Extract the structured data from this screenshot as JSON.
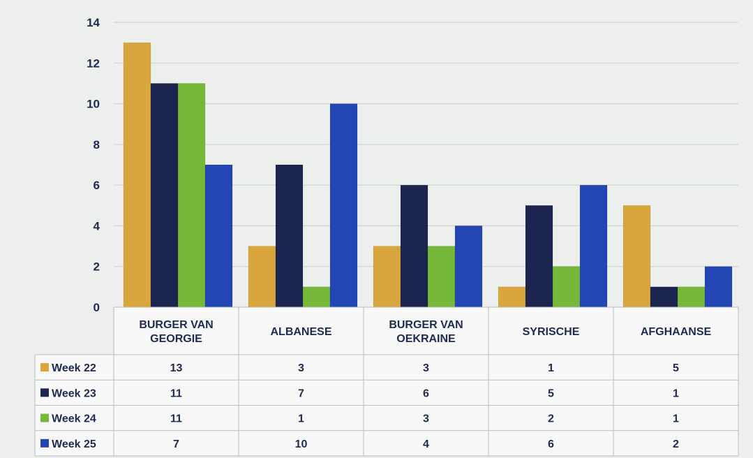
{
  "chart_data": {
    "type": "bar",
    "categories": [
      [
        "BURGER VAN",
        "GEORGIE"
      ],
      [
        "ALBANESE"
      ],
      [
        "BURGER VAN",
        "OEKRAINE"
      ],
      [
        "SYRISCHE"
      ],
      [
        "AFGHAANSE"
      ]
    ],
    "series": [
      {
        "name": "Week 22",
        "color": "#d8a63c",
        "values": [
          13,
          3,
          3,
          1,
          5
        ]
      },
      {
        "name": "Week 23",
        "color": "#1c2450",
        "values": [
          11,
          7,
          6,
          5,
          1
        ]
      },
      {
        "name": "Week 24",
        "color": "#76b83a",
        "values": [
          11,
          1,
          3,
          2,
          1
        ]
      },
      {
        "name": "Week 25",
        "color": "#2446b4",
        "values": [
          7,
          10,
          4,
          6,
          2
        ]
      }
    ],
    "ylim": [
      0,
      14
    ],
    "yticks": [
      0,
      2,
      4,
      6,
      8,
      10,
      12,
      14
    ],
    "grid": true,
    "legend": "data-table-left"
  }
}
